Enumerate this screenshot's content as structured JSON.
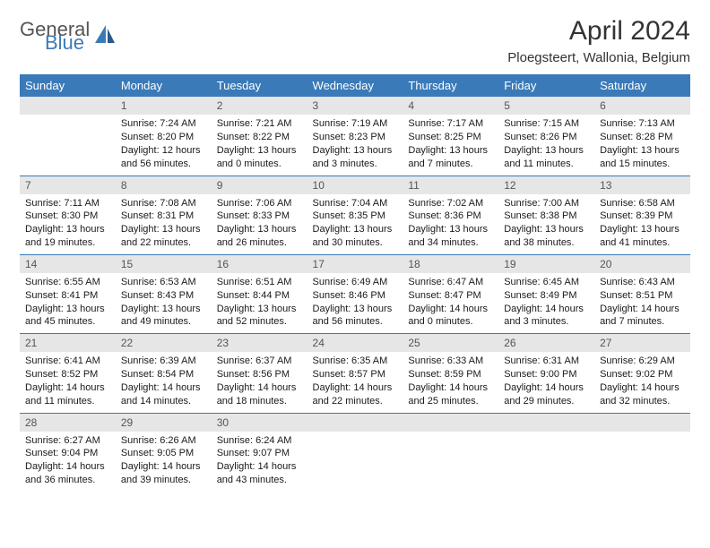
{
  "colors": {
    "header_bg": "#3a7ab8",
    "header_fg": "#ffffff",
    "daynum_bg": "#e6e6e6",
    "row_border": "#3a7ab8",
    "logo_gray": "#555555",
    "logo_blue": "#3a7ab8"
  },
  "logo": {
    "text1": "General",
    "text2": "Blue"
  },
  "title": "April 2024",
  "location": "Ploegsteert, Wallonia, Belgium",
  "weekday_headers": [
    "Sunday",
    "Monday",
    "Tuesday",
    "Wednesday",
    "Thursday",
    "Friday",
    "Saturday"
  ],
  "layout": {
    "first_weekday_index": 1,
    "days_in_month": 30
  },
  "days": {
    "1": {
      "sunrise": "7:24 AM",
      "sunset": "8:20 PM",
      "daylight": "12 hours and 56 minutes."
    },
    "2": {
      "sunrise": "7:21 AM",
      "sunset": "8:22 PM",
      "daylight": "13 hours and 0 minutes."
    },
    "3": {
      "sunrise": "7:19 AM",
      "sunset": "8:23 PM",
      "daylight": "13 hours and 3 minutes."
    },
    "4": {
      "sunrise": "7:17 AM",
      "sunset": "8:25 PM",
      "daylight": "13 hours and 7 minutes."
    },
    "5": {
      "sunrise": "7:15 AM",
      "sunset": "8:26 PM",
      "daylight": "13 hours and 11 minutes."
    },
    "6": {
      "sunrise": "7:13 AM",
      "sunset": "8:28 PM",
      "daylight": "13 hours and 15 minutes."
    },
    "7": {
      "sunrise": "7:11 AM",
      "sunset": "8:30 PM",
      "daylight": "13 hours and 19 minutes."
    },
    "8": {
      "sunrise": "7:08 AM",
      "sunset": "8:31 PM",
      "daylight": "13 hours and 22 minutes."
    },
    "9": {
      "sunrise": "7:06 AM",
      "sunset": "8:33 PM",
      "daylight": "13 hours and 26 minutes."
    },
    "10": {
      "sunrise": "7:04 AM",
      "sunset": "8:35 PM",
      "daylight": "13 hours and 30 minutes."
    },
    "11": {
      "sunrise": "7:02 AM",
      "sunset": "8:36 PM",
      "daylight": "13 hours and 34 minutes."
    },
    "12": {
      "sunrise": "7:00 AM",
      "sunset": "8:38 PM",
      "daylight": "13 hours and 38 minutes."
    },
    "13": {
      "sunrise": "6:58 AM",
      "sunset": "8:39 PM",
      "daylight": "13 hours and 41 minutes."
    },
    "14": {
      "sunrise": "6:55 AM",
      "sunset": "8:41 PM",
      "daylight": "13 hours and 45 minutes."
    },
    "15": {
      "sunrise": "6:53 AM",
      "sunset": "8:43 PM",
      "daylight": "13 hours and 49 minutes."
    },
    "16": {
      "sunrise": "6:51 AM",
      "sunset": "8:44 PM",
      "daylight": "13 hours and 52 minutes."
    },
    "17": {
      "sunrise": "6:49 AM",
      "sunset": "8:46 PM",
      "daylight": "13 hours and 56 minutes."
    },
    "18": {
      "sunrise": "6:47 AM",
      "sunset": "8:47 PM",
      "daylight": "14 hours and 0 minutes."
    },
    "19": {
      "sunrise": "6:45 AM",
      "sunset": "8:49 PM",
      "daylight": "14 hours and 3 minutes."
    },
    "20": {
      "sunrise": "6:43 AM",
      "sunset": "8:51 PM",
      "daylight": "14 hours and 7 minutes."
    },
    "21": {
      "sunrise": "6:41 AM",
      "sunset": "8:52 PM",
      "daylight": "14 hours and 11 minutes."
    },
    "22": {
      "sunrise": "6:39 AM",
      "sunset": "8:54 PM",
      "daylight": "14 hours and 14 minutes."
    },
    "23": {
      "sunrise": "6:37 AM",
      "sunset": "8:56 PM",
      "daylight": "14 hours and 18 minutes."
    },
    "24": {
      "sunrise": "6:35 AM",
      "sunset": "8:57 PM",
      "daylight": "14 hours and 22 minutes."
    },
    "25": {
      "sunrise": "6:33 AM",
      "sunset": "8:59 PM",
      "daylight": "14 hours and 25 minutes."
    },
    "26": {
      "sunrise": "6:31 AM",
      "sunset": "9:00 PM",
      "daylight": "14 hours and 29 minutes."
    },
    "27": {
      "sunrise": "6:29 AM",
      "sunset": "9:02 PM",
      "daylight": "14 hours and 32 minutes."
    },
    "28": {
      "sunrise": "6:27 AM",
      "sunset": "9:04 PM",
      "daylight": "14 hours and 36 minutes."
    },
    "29": {
      "sunrise": "6:26 AM",
      "sunset": "9:05 PM",
      "daylight": "14 hours and 39 minutes."
    },
    "30": {
      "sunrise": "6:24 AM",
      "sunset": "9:07 PM",
      "daylight": "14 hours and 43 minutes."
    }
  },
  "labels": {
    "sunrise": "Sunrise: ",
    "sunset": "Sunset: ",
    "daylight": "Daylight: "
  }
}
